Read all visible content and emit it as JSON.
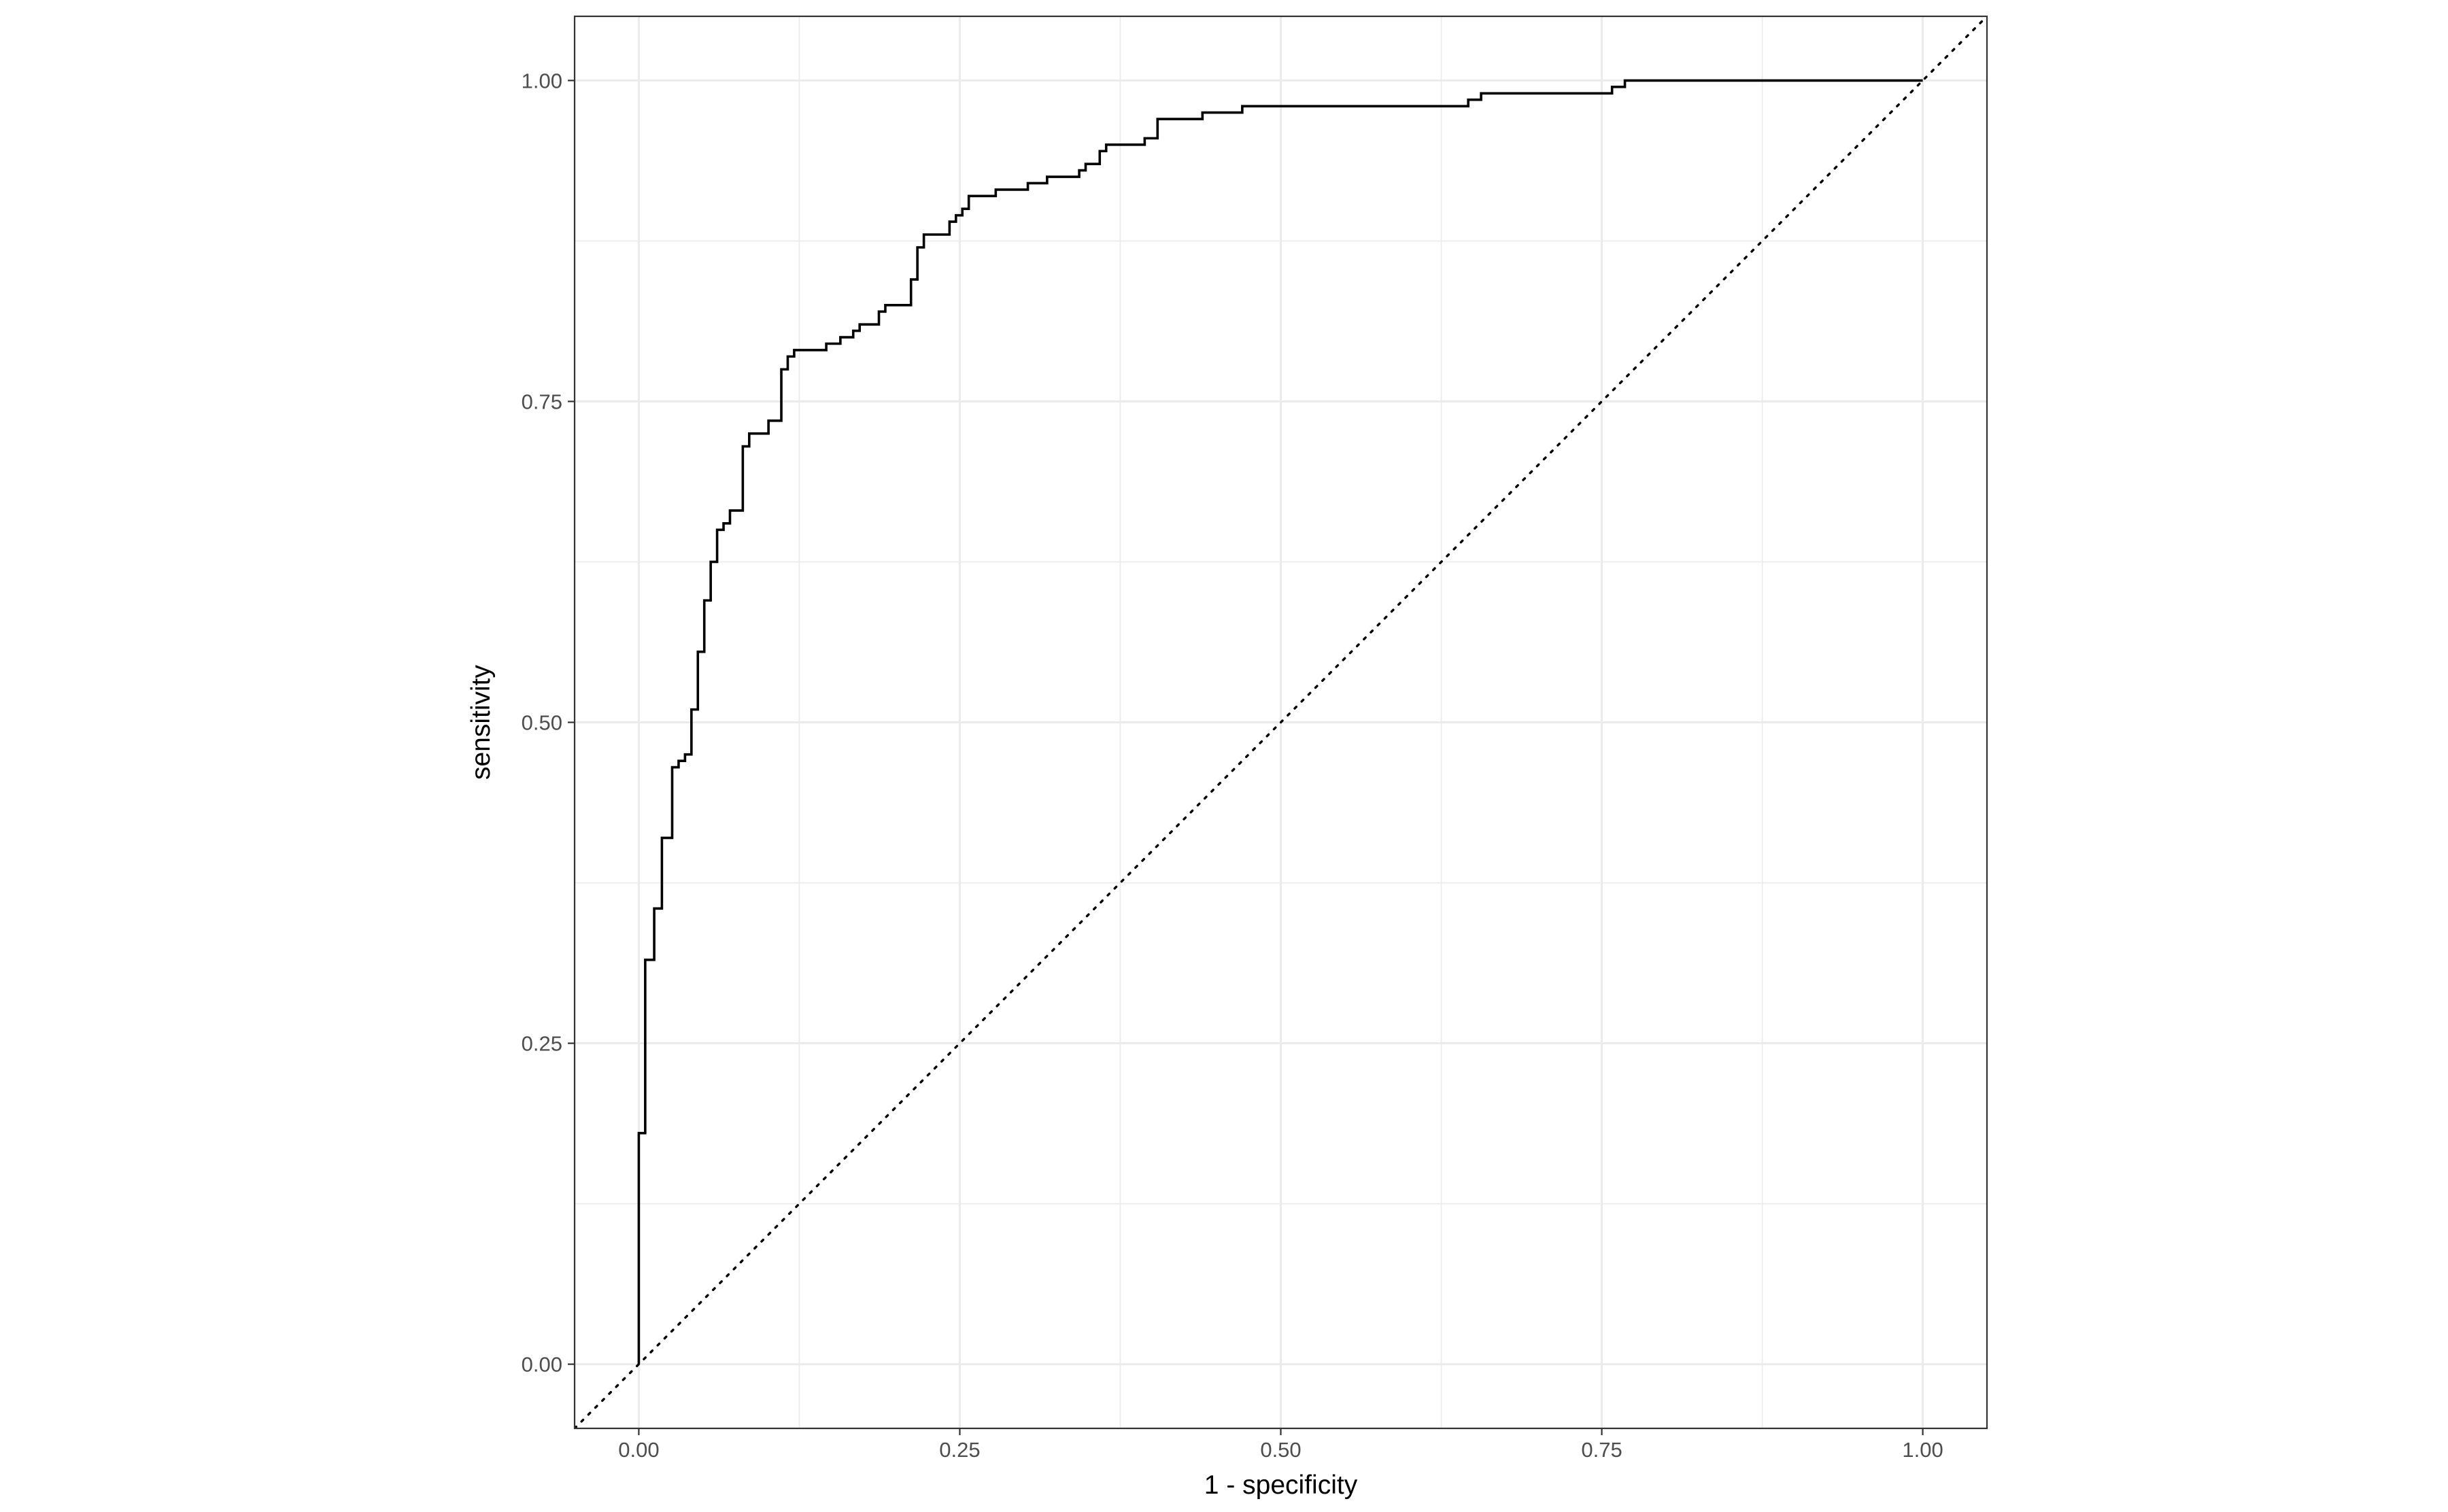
{
  "chart_data": {
    "type": "line",
    "title": "",
    "xlabel": "1 - specificity",
    "ylabel": "sensitivity",
    "xlim": [
      -0.05,
      1.05
    ],
    "ylim": [
      -0.05,
      1.05
    ],
    "x_ticks": [
      0,
      0.25,
      0.5,
      0.75,
      1
    ],
    "x_tick_labels": [
      "0.00",
      "0.25",
      "0.50",
      "0.75",
      "1.00"
    ],
    "y_ticks": [
      0,
      0.25,
      0.5,
      0.75,
      1
    ],
    "y_tick_labels": [
      "0.00",
      "0.25",
      "0.50",
      "0.75",
      "1.00"
    ],
    "grid": true,
    "legend": "none",
    "colors": {
      "curve": "#000000",
      "reference": "#000000",
      "grid": "#ebebeb",
      "panel_border": "#333333"
    },
    "series": [
      {
        "style": "step",
        "points": [
          [
            0.0,
            0.0
          ],
          [
            0.0,
            0.18
          ],
          [
            0.005,
            0.18
          ],
          [
            0.005,
            0.315
          ],
          [
            0.012,
            0.315
          ],
          [
            0.012,
            0.355
          ],
          [
            0.018,
            0.355
          ],
          [
            0.018,
            0.41
          ],
          [
            0.026,
            0.41
          ],
          [
            0.026,
            0.465
          ],
          [
            0.031,
            0.465
          ],
          [
            0.031,
            0.47
          ],
          [
            0.036,
            0.47
          ],
          [
            0.036,
            0.475
          ],
          [
            0.041,
            0.475
          ],
          [
            0.041,
            0.51
          ],
          [
            0.046,
            0.51
          ],
          [
            0.046,
            0.555
          ],
          [
            0.051,
            0.555
          ],
          [
            0.051,
            0.595
          ],
          [
            0.056,
            0.595
          ],
          [
            0.056,
            0.625
          ],
          [
            0.061,
            0.625
          ],
          [
            0.061,
            0.65
          ],
          [
            0.066,
            0.65
          ],
          [
            0.066,
            0.655
          ],
          [
            0.071,
            0.655
          ],
          [
            0.071,
            0.665
          ],
          [
            0.081,
            0.665
          ],
          [
            0.081,
            0.715
          ],
          [
            0.086,
            0.715
          ],
          [
            0.086,
            0.725
          ],
          [
            0.101,
            0.725
          ],
          [
            0.101,
            0.735
          ],
          [
            0.111,
            0.735
          ],
          [
            0.111,
            0.775
          ],
          [
            0.116,
            0.775
          ],
          [
            0.116,
            0.785
          ],
          [
            0.121,
            0.785
          ],
          [
            0.121,
            0.79
          ],
          [
            0.146,
            0.79
          ],
          [
            0.146,
            0.795
          ],
          [
            0.157,
            0.795
          ],
          [
            0.157,
            0.8
          ],
          [
            0.167,
            0.8
          ],
          [
            0.167,
            0.805
          ],
          [
            0.172,
            0.805
          ],
          [
            0.172,
            0.81
          ],
          [
            0.187,
            0.81
          ],
          [
            0.187,
            0.82
          ],
          [
            0.192,
            0.82
          ],
          [
            0.192,
            0.825
          ],
          [
            0.212,
            0.825
          ],
          [
            0.212,
            0.845
          ],
          [
            0.217,
            0.845
          ],
          [
            0.217,
            0.87
          ],
          [
            0.222,
            0.87
          ],
          [
            0.222,
            0.88
          ],
          [
            0.242,
            0.88
          ],
          [
            0.242,
            0.89
          ],
          [
            0.247,
            0.89
          ],
          [
            0.247,
            0.895
          ],
          [
            0.252,
            0.895
          ],
          [
            0.252,
            0.9
          ],
          [
            0.257,
            0.9
          ],
          [
            0.257,
            0.91
          ],
          [
            0.278,
            0.91
          ],
          [
            0.278,
            0.915
          ],
          [
            0.303,
            0.915
          ],
          [
            0.303,
            0.92
          ],
          [
            0.318,
            0.92
          ],
          [
            0.318,
            0.925
          ],
          [
            0.343,
            0.925
          ],
          [
            0.343,
            0.93
          ],
          [
            0.348,
            0.93
          ],
          [
            0.348,
            0.935
          ],
          [
            0.359,
            0.935
          ],
          [
            0.359,
            0.945
          ],
          [
            0.364,
            0.945
          ],
          [
            0.364,
            0.95
          ],
          [
            0.394,
            0.95
          ],
          [
            0.394,
            0.955
          ],
          [
            0.404,
            0.955
          ],
          [
            0.404,
            0.97
          ],
          [
            0.439,
            0.97
          ],
          [
            0.439,
            0.975
          ],
          [
            0.47,
            0.975
          ],
          [
            0.47,
            0.98
          ],
          [
            0.646,
            0.98
          ],
          [
            0.646,
            0.985
          ],
          [
            0.656,
            0.985
          ],
          [
            0.656,
            0.99
          ],
          [
            0.758,
            0.99
          ],
          [
            0.758,
            0.995
          ],
          [
            0.768,
            0.995
          ],
          [
            0.768,
            1.0
          ],
          [
            1.0,
            1.0
          ]
        ]
      },
      {
        "style": "dotted",
        "points": [
          [
            -0.05,
            -0.05
          ],
          [
            1.05,
            1.05
          ]
        ]
      }
    ]
  }
}
